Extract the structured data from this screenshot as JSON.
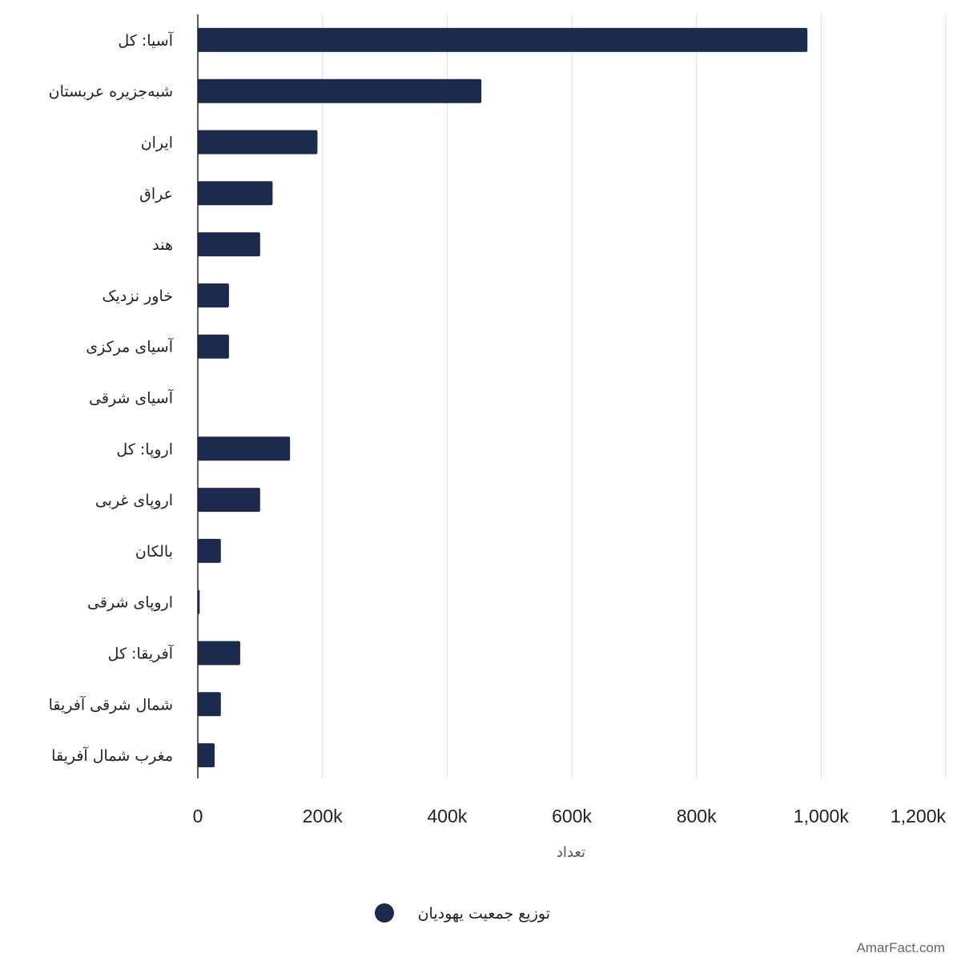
{
  "chart_data": {
    "type": "bar",
    "orientation": "horizontal",
    "categories": [
      "آسیا: کل",
      "شبه‌جزیره عربستان",
      "ایران",
      "عراق",
      "هند",
      "خاور نزدیک",
      "آسیای مرکزی",
      "آسیای شرقی",
      "اروپا: کل",
      "اروپای غربی",
      "بالکان",
      "اروپای شرقی",
      "آفریقا: کل",
      "شمال شرقی آفریقا",
      "مغرب شمال آفریقا"
    ],
    "series": [
      {
        "name": "توزیع جمعیت یهودیان",
        "values": [
          978000,
          455000,
          192000,
          120000,
          100000,
          50000,
          50000,
          0,
          148000,
          100000,
          37000,
          3000,
          68000,
          37000,
          27000
        ],
        "color": "#1c2b4d"
      }
    ],
    "xlabel": "تعداد",
    "ylabel": "",
    "xlim": [
      0,
      1200000
    ],
    "xticks": [
      {
        "value": 0,
        "label": "0"
      },
      {
        "value": 200000,
        "label": "200k"
      },
      {
        "value": 400000,
        "label": "400k"
      },
      {
        "value": 600000,
        "label": "600k"
      },
      {
        "value": 800000,
        "label": "800k"
      },
      {
        "value": 1000000,
        "label": "1,000k"
      },
      {
        "value": 1200000,
        "label": "1,200k"
      }
    ],
    "grid": "vertical",
    "legend": "bottom-center"
  },
  "colors": {
    "bar": "#1c2b4d",
    "grid": "#dddddd",
    "axis": "#222222"
  },
  "watermark": "AmarFact.com"
}
